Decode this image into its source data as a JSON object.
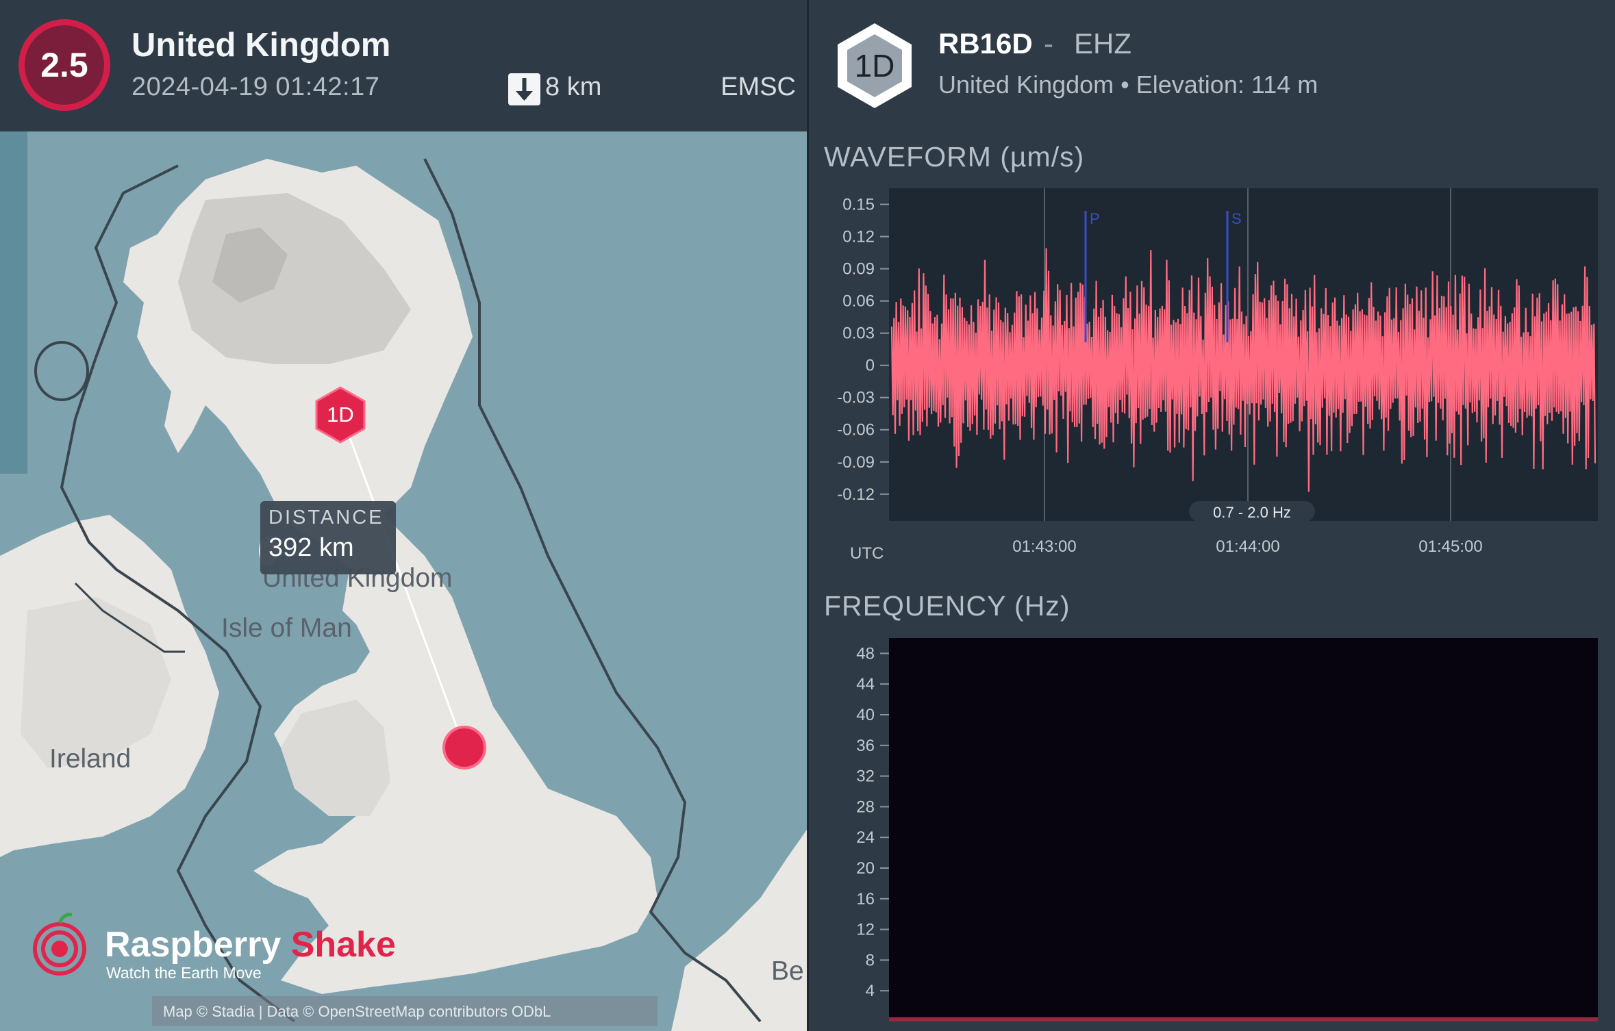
{
  "event": {
    "magnitude": "2.5",
    "region": "United Kingdom",
    "datetime": "2024-04-19 01:42:17",
    "depth": "8 km",
    "source": "EMSC"
  },
  "map": {
    "labels": {
      "country": "United Kingdom",
      "isle": "Isle of Man",
      "ireland": "Ireland",
      "belgium_partial": "Be"
    },
    "station_marker": "1D",
    "distance": {
      "label": "DISTANCE",
      "value": "392 km"
    },
    "logo": {
      "name_part1": "Raspberry",
      "name_part2": "Shake",
      "tagline": "Watch the Earth Move"
    },
    "attribution": "Map © Stadia | Data © OpenStreetMap contributors ODbL"
  },
  "station": {
    "badge": "1D",
    "code": "RB16D",
    "separator": "-",
    "channel": "EHZ",
    "info": "United Kingdom • Elevation: 114 m"
  },
  "waveform": {
    "title": "WAVEFORM (µm/s)",
    "filter": "0.7 - 2.0 Hz",
    "timezone": "UTC",
    "phase_p": "P",
    "phase_s": "S"
  },
  "frequency": {
    "title": "FREQUENCY (Hz)"
  },
  "chart_data": [
    {
      "type": "line",
      "title": "WAVEFORM (µm/s)",
      "xlabel": "UTC",
      "x_ticks": [
        "01:43:00",
        "01:44:00",
        "01:45:00"
      ],
      "y_ticks": [
        "0.15",
        "0.12",
        "0.09",
        "0.06",
        "0.03",
        "0",
        "-0.03",
        "-0.06",
        "-0.09",
        "-0.12"
      ],
      "ylim": [
        -0.145,
        0.165
      ],
      "annotations": [
        "P",
        "S",
        "0.7 - 2.0 Hz"
      ],
      "color": "#ff6b81"
    },
    {
      "type": "heatmap",
      "title": "FREQUENCY (Hz)",
      "y_ticks": [
        "48",
        "44",
        "40",
        "36",
        "32",
        "28",
        "24",
        "20",
        "16",
        "12",
        "8",
        "4"
      ],
      "ylim": [
        0,
        50
      ],
      "colormap": "magma"
    }
  ]
}
